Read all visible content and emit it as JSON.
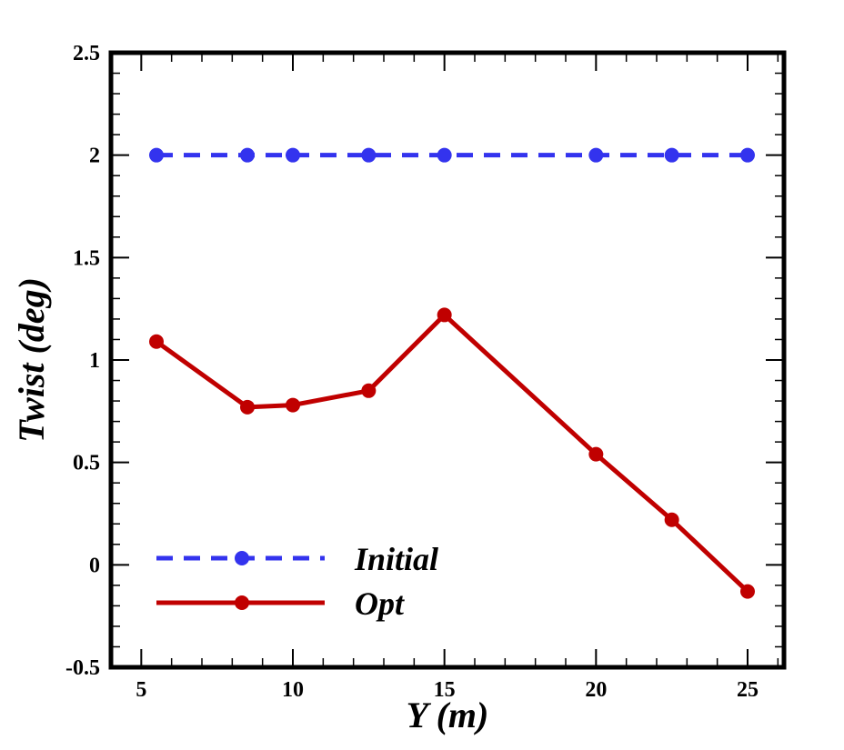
{
  "chart_data": {
    "type": "line",
    "title": "",
    "xlabel": "Y (m)",
    "ylabel": "Twist (deg)",
    "xlim": [
      4,
      26.2
    ],
    "ylim": [
      -0.5,
      2.5
    ],
    "xticks": [
      5,
      10,
      15,
      20,
      25
    ],
    "yticks": [
      -0.5,
      0,
      0.5,
      1,
      1.5,
      2,
      2.5
    ],
    "xtick_labels": [
      "5",
      "10",
      "15",
      "20",
      "25"
    ],
    "ytick_labels": [
      "-0.5",
      "0",
      "0.5",
      "1",
      "1.5",
      "2",
      "2.5"
    ],
    "grid": false,
    "legend_position": "bottom-left",
    "series": [
      {
        "name": "Initial",
        "color": "#3333ee",
        "line_style": "dashed",
        "marker": "circle",
        "x": [
          5.5,
          8.5,
          10,
          12.5,
          15,
          20,
          22.5,
          25
        ],
        "y": [
          2,
          2,
          2,
          2,
          2,
          2,
          2,
          2
        ]
      },
      {
        "name": "Opt",
        "color": "#c00000",
        "line_style": "solid",
        "marker": "circle",
        "x": [
          5.5,
          8.5,
          10,
          12.5,
          15,
          20,
          22.5,
          25
        ],
        "y": [
          1.09,
          0.77,
          0.78,
          0.85,
          1.22,
          0.54,
          0.22,
          -0.13
        ]
      }
    ]
  }
}
